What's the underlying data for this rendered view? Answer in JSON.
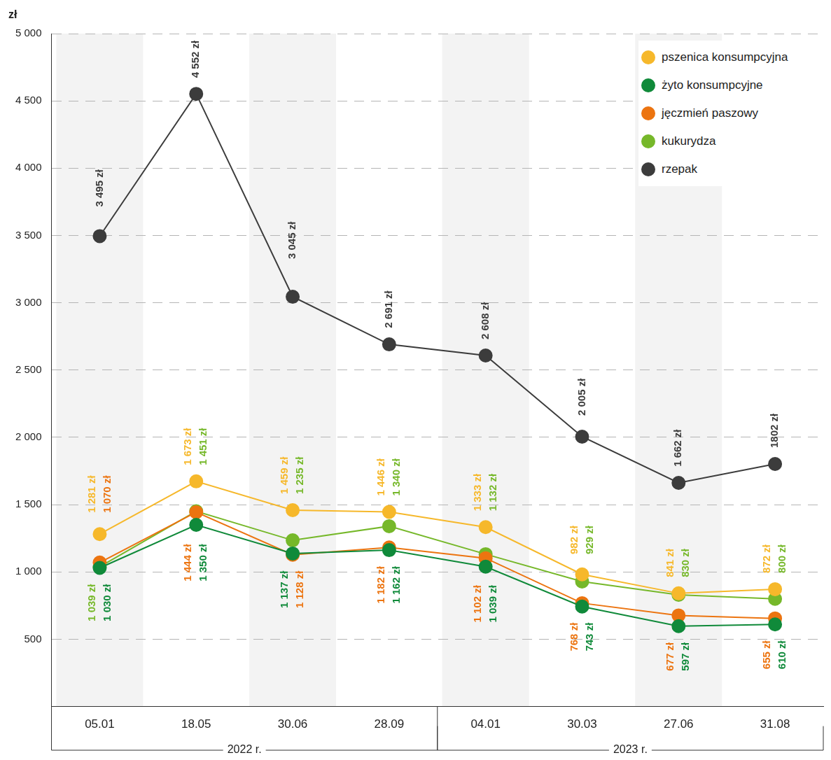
{
  "chart_data": {
    "type": "line",
    "ylabel": "zł",
    "categories": [
      "05.01",
      "18.05",
      "30.06",
      "28.09",
      "04.01",
      "30.03",
      "27.06",
      "31.08"
    ],
    "series": [
      {
        "name": "pszenica konsumpcyjna",
        "color": "#f6b82b",
        "values": [
          1281,
          1673,
          1459,
          1446,
          1333,
          982,
          841,
          872
        ],
        "value_labels": [
          "1 281 zł",
          "1 673 zł",
          "1 459 zł",
          "1 446 zł",
          "1 333 zł",
          "982 zł",
          "841 zł",
          "872 zł"
        ]
      },
      {
        "name": "żyto konsumpcyjne",
        "color": "#108a3a",
        "values": [
          1030,
          1350,
          1137,
          1162,
          1039,
          743,
          597,
          610
        ],
        "value_labels": [
          "1 030 zł",
          "1 350 zł",
          "1 137 zł",
          "1 162 zł",
          "1 039 zł",
          "743 zł",
          "597 zł",
          "610 zł"
        ]
      },
      {
        "name": "jęczmień paszowy",
        "color": "#ec7410",
        "values": [
          1070,
          1444,
          1128,
          1182,
          1102,
          768,
          677,
          655
        ],
        "value_labels": [
          "1 070 zł",
          "1 444 zł",
          "1 128 zł",
          "1 182 zł",
          "1 102 zł",
          "768 zł",
          "677 zł",
          "655 zł"
        ]
      },
      {
        "name": "kukurydza",
        "color": "#76b82a",
        "values": [
          1039,
          1451,
          1235,
          1340,
          1132,
          929,
          830,
          800
        ],
        "value_labels": [
          "1 039 zł",
          "1 451 zł",
          "1 235 zł",
          "1 340 zł",
          "1 132 zł",
          "929 zł",
          "830 zł",
          "800 zł"
        ]
      },
      {
        "name": "rzepak",
        "color": "#3c3c3c",
        "values": [
          3495,
          4552,
          3045,
          2691,
          2608,
          2005,
          1662,
          1802
        ],
        "value_labels": [
          "3 495 zł",
          "4 552 zł",
          "3 045 zł",
          "2 691 zł",
          "2 608 zł",
          "2 005 zł",
          "1 662 zł",
          "1802 zł"
        ]
      }
    ],
    "ylim": [
      0,
      5000
    ],
    "yticks": [
      500,
      {
        "value": 1000,
        "label": "1 000"
      },
      {
        "value": 1500,
        "label": "1 500"
      },
      {
        "value": 2000,
        "label": "2 000"
      },
      {
        "value": 2500,
        "label": "2 500"
      },
      {
        "value": 3000,
        "label": "3 000"
      },
      {
        "value": 3500,
        "label": "3 500"
      },
      {
        "value": 4000,
        "label": "4 000"
      },
      {
        "value": 4500,
        "label": "4 500"
      },
      {
        "value": 5000,
        "label": "5 000"
      }
    ],
    "grid": true,
    "legend": "top right",
    "data_labels": true,
    "marker": "circle",
    "annotations": [
      {
        "label": "2022 r.",
        "from": "05.01",
        "to": "28.09"
      },
      {
        "label": "2023 r.",
        "from": "04.01",
        "to": "31.08"
      }
    ]
  }
}
